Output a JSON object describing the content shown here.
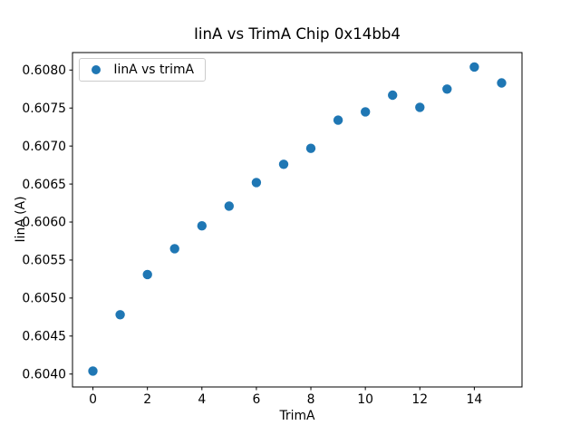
{
  "figure": {
    "background": "#ffffff",
    "text_color": "#000000",
    "spine_color": "#000000"
  },
  "chart_data": {
    "type": "scatter",
    "title": "IinA vs TrimA Chip 0x14bb4",
    "xlabel": "TrimA",
    "ylabel": "IinA (A)",
    "legend": {
      "label": "IinA vs trimA",
      "position": "upper left"
    },
    "marker_color": "#1f77b4",
    "grid": false,
    "x": [
      0,
      1,
      2,
      3,
      4,
      5,
      6,
      7,
      8,
      9,
      10,
      11,
      12,
      13,
      14,
      15
    ],
    "y": [
      0.60404,
      0.60478,
      0.60531,
      0.60565,
      0.60595,
      0.60621,
      0.60652,
      0.60676,
      0.60697,
      0.60734,
      0.60745,
      0.60767,
      0.60751,
      0.60775,
      0.60804,
      0.60783
    ],
    "xlim": [
      -0.75,
      15.75
    ],
    "ylim": [
      0.60383,
      0.60823
    ],
    "xticks": [
      0,
      2,
      4,
      6,
      8,
      10,
      12,
      14
    ],
    "xtick_labels": [
      "0",
      "2",
      "4",
      "6",
      "8",
      "10",
      "12",
      "14"
    ],
    "yticks": [
      0.604,
      0.6045,
      0.605,
      0.6055,
      0.606,
      0.6065,
      0.607,
      0.6075,
      0.608
    ],
    "ytick_labels": [
      "0.6040",
      "0.6045",
      "0.6050",
      "0.6055",
      "0.6060",
      "0.6065",
      "0.6070",
      "0.6075",
      "0.6080"
    ]
  }
}
